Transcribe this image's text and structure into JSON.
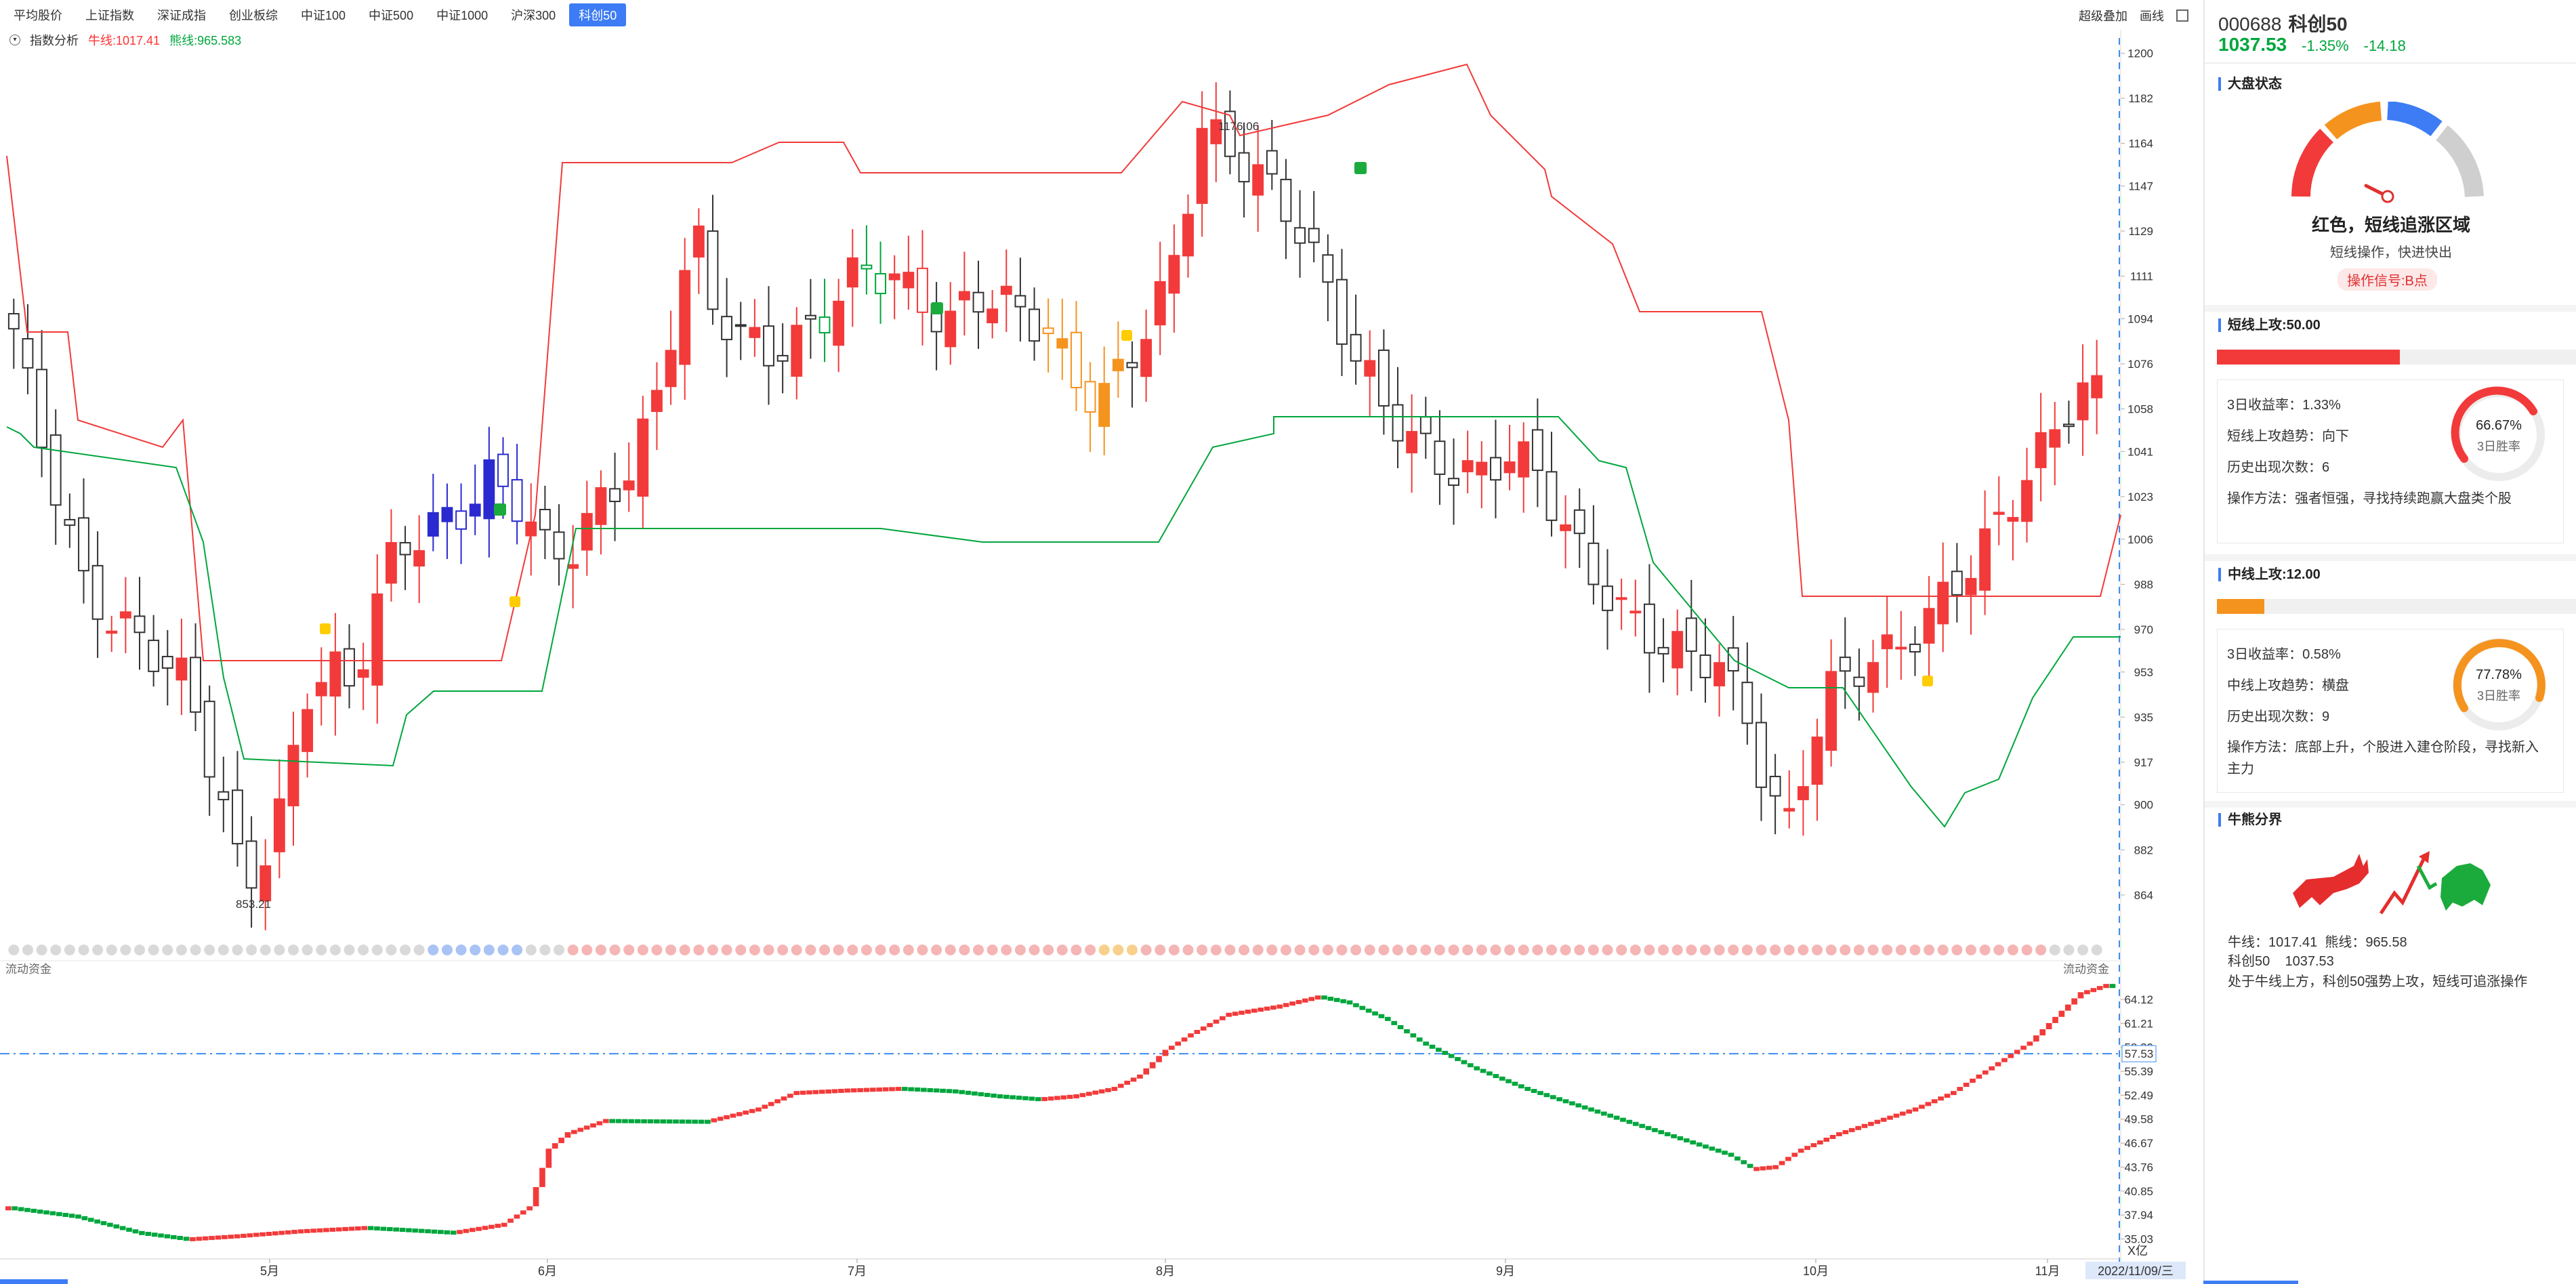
{
  "tabs": [
    "平均股价",
    "上证指数",
    "深证成指",
    "创业板综",
    "中证100",
    "中证500",
    "中证1000",
    "沪深300",
    "科创50"
  ],
  "active_tab": "科创50",
  "tools": {
    "overlay": "超级叠加",
    "draw": "画线"
  },
  "subhead": {
    "name": "指数分析",
    "bull_label": "牛线:1017.41",
    "bear_label": "熊线:965.583"
  },
  "y_axis_main": [
    "1200",
    "1182",
    "1164",
    "1147",
    "1129",
    "1111",
    "1094",
    "1076",
    "1058",
    "1041",
    "1023",
    "1006",
    "988",
    "970",
    "953",
    "935",
    "917",
    "900",
    "882",
    "864"
  ],
  "x_axis": [
    "5月",
    "6月",
    "7月",
    "8月",
    "9月",
    "10月",
    "11月"
  ],
  "date_label": "2022/11/09/三",
  "annot_high": "1176.06",
  "annot_low": "853.21",
  "flow": {
    "title": "流动资金",
    "title_right": "流动资金",
    "unit": "X亿",
    "current": "57.53",
    "y_axis": [
      "64.12",
      "61.21",
      "58.30",
      "55.39",
      "52.49",
      "49.58",
      "46.67",
      "43.76",
      "40.85",
      "37.94",
      "35.03"
    ]
  },
  "right": {
    "code": "000688",
    "name": "科创50",
    "price": "1037.53",
    "change_pct": "-1.35%",
    "change": "-14.18",
    "market_title": "大盘状态",
    "market_state": "红色，短线追涨区域",
    "market_desc": "短线操作，快进快出",
    "signal": "操作信号:B点",
    "short_title": "短线上攻:50.00",
    "short": {
      "ret_label": "3日收益率：",
      "ret": "1.33%",
      "trend_label": "短线上攻趋势：",
      "trend": "向下",
      "count_label": "历史出现次数：",
      "count": "6",
      "method_label": "操作方法：",
      "method": "强者恒强，寻找持续跑赢大盘类个股",
      "win": "66.67%",
      "win_label": "3日胜率"
    },
    "mid_title": "中线上攻:12.00",
    "mid": {
      "ret_label": "3日收益率：",
      "ret": "0.58%",
      "trend_label": "中线上攻趋势：",
      "trend": "横盘",
      "count_label": "历史出现次数：",
      "count": "9",
      "method_label": "操作方法：",
      "method": "底部上升，个股进入建仓阶段，寻找新入主力",
      "win": "77.78%",
      "win_label": "3日胜率"
    },
    "bb_title": "牛熊分界",
    "bb_bull": "牛线：1017.41",
    "bb_bear": "熊线：965.58",
    "bb_index": "科创50",
    "bb_index_val": "1037.53",
    "bb_desc": "处于牛线上方，科创50强势上攻，短线可追涨操作"
  },
  "colors": {
    "up": "#f23a3a",
    "down": "#00a63d",
    "accent": "#3d7cf4",
    "orange": "#f5931f",
    "blue": "#2a2ad0"
  }
}
